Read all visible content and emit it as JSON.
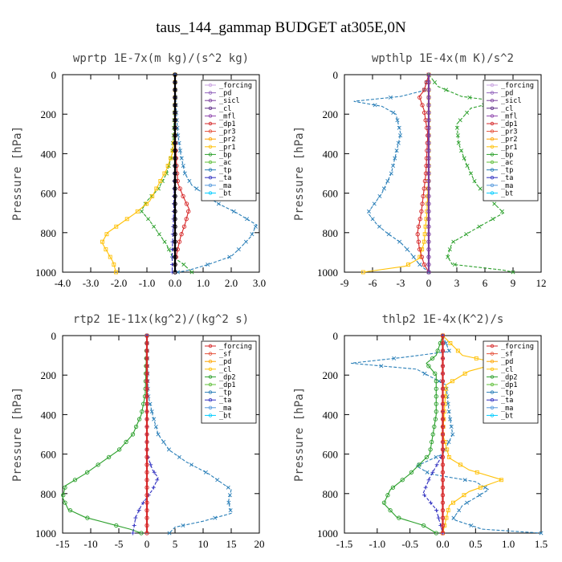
{
  "title": "taus_144_gammap  BUDGET at305E,0N",
  "chart_data": [
    {
      "type": "line",
      "title": "wprtp  1E-7x(m kg)/(s^2 kg)",
      "ylabel": "Pressure [hPa]",
      "xlim": [
        -4.0,
        3.0
      ],
      "ylim": [
        1000,
        0
      ],
      "xticks": [
        -4.0,
        -3.0,
        -2.0,
        -1.0,
        0.0,
        1.0,
        2.0,
        3.0
      ],
      "xtick_labels": [
        "-4.0",
        "-3.0",
        "-2.0",
        "-1.0",
        "0.0",
        "1.0",
        "2.0",
        "3.0"
      ],
      "yticks": [
        0,
        200,
        400,
        600,
        800,
        1000
      ],
      "legend": [
        "_forcing",
        "_pd",
        "_sicl",
        "_cl",
        "_mfl",
        "_dp1",
        "_pr3",
        "_pr2",
        "_pr1",
        "_bp",
        "_ac",
        "_tp",
        "_ta",
        "_ma",
        "_bt"
      ],
      "legend_placement": "top-right",
      "series": [
        {
          "color": "#2a7fb8",
          "marker": "x",
          "points": [
            [
              0,
              0
            ],
            [
              0.02,
              100
            ],
            [
              0.05,
              200
            ],
            [
              0.1,
              300
            ],
            [
              0.2,
              400
            ],
            [
              0.35,
              500
            ],
            [
              0.6,
              560
            ],
            [
              1.0,
              600
            ],
            [
              1.5,
              650
            ],
            [
              2.2,
              700
            ],
            [
              2.9,
              760
            ],
            [
              2.7,
              820
            ],
            [
              2.3,
              880
            ],
            [
              2.0,
              920
            ],
            [
              1.2,
              960
            ],
            [
              0.5,
              990
            ],
            [
              0.1,
              1000
            ]
          ]
        },
        {
          "color": "#2ca02c",
          "marker": "x",
          "points": [
            [
              0,
              0
            ],
            [
              0,
              100
            ],
            [
              -0.05,
              300
            ],
            [
              -0.1,
              400
            ],
            [
              -0.3,
              500
            ],
            [
              -0.6,
              580
            ],
            [
              -1.0,
              640
            ],
            [
              -1.2,
              690
            ],
            [
              -0.9,
              740
            ],
            [
              -0.6,
              800
            ],
            [
              -0.3,
              860
            ],
            [
              -0.1,
              920
            ],
            [
              0.3,
              960
            ],
            [
              0.6,
              1000
            ]
          ]
        },
        {
          "color": "#ffc107",
          "marker": "s",
          "points": [
            [
              0,
              0
            ],
            [
              0,
              300
            ],
            [
              -0.1,
              400
            ],
            [
              -0.3,
              480
            ],
            [
              -0.6,
              560
            ],
            [
              -0.9,
              640
            ],
            [
              -1.4,
              700
            ],
            [
              -2.0,
              760
            ],
            [
              -2.4,
              800
            ],
            [
              -2.6,
              850
            ],
            [
              -2.4,
              900
            ],
            [
              -2.2,
              950
            ],
            [
              -2.1,
              1000
            ]
          ]
        },
        {
          "color": "#d62728",
          "marker": "o",
          "points": [
            [
              0,
              0
            ],
            [
              0,
              300
            ],
            [
              0.05,
              450
            ],
            [
              0.1,
              550
            ],
            [
              0.3,
              620
            ],
            [
              0.5,
              680
            ],
            [
              0.35,
              760
            ],
            [
              0.2,
              820
            ],
            [
              0.1,
              880
            ],
            [
              0,
              950
            ],
            [
              0,
              1000
            ]
          ]
        },
        {
          "color": "#3030c0",
          "marker": "+",
          "points": [
            [
              0,
              0
            ],
            [
              0,
              400
            ],
            [
              -0.05,
              700
            ],
            [
              -0.1,
              900
            ],
            [
              -0.1,
              1000
            ]
          ]
        },
        {
          "color": "#7b3f9e",
          "marker": "o",
          "points": [
            [
              0,
              0
            ],
            [
              0,
              1000
            ]
          ]
        },
        {
          "color": "#000000",
          "marker": "o",
          "points": [
            [
              0,
              0
            ],
            [
              0,
              1000
            ]
          ]
        }
      ]
    },
    {
      "type": "line",
      "title": "wpthlp  1E-4x(m K)/s^2",
      "ylabel": "Pressure [hPa]",
      "xlim": [
        -9,
        12
      ],
      "ylim": [
        1000,
        0
      ],
      "xticks": [
        -9,
        -6,
        -3,
        0,
        3,
        6,
        9,
        12
      ],
      "xtick_labels": [
        "-9",
        "-6",
        "-3",
        "0",
        "3",
        "6",
        "9",
        "12"
      ],
      "yticks": [
        0,
        200,
        400,
        600,
        800,
        1000
      ],
      "legend": [
        "_forcing",
        "_pd",
        "_sicl",
        "_cl",
        "_mfl",
        "_dp1",
        "_pr3",
        "_pr2",
        "_pr1",
        "_bp",
        "_ac",
        "_tp",
        "_ta",
        "_ma",
        "_bt"
      ],
      "legend_placement": "top-right",
      "series": [
        {
          "color": "#2a7fb8",
          "marker": "x",
          "points": [
            [
              0,
              0
            ],
            [
              -0.5,
              80
            ],
            [
              -3.0,
              110
            ],
            [
              -8.0,
              135
            ],
            [
              -5.0,
              160
            ],
            [
              -3.5,
              200
            ],
            [
              -3.0,
              300
            ],
            [
              -3.5,
              400
            ],
            [
              -4.0,
              500
            ],
            [
              -5.0,
              600
            ],
            [
              -6.5,
              700
            ],
            [
              -5.5,
              760
            ],
            [
              -4.5,
              800
            ],
            [
              -3.0,
              850
            ],
            [
              -2.0,
              900
            ],
            [
              -1.0,
              960
            ],
            [
              0,
              1000
            ]
          ]
        },
        {
          "color": "#2ca02c",
          "marker": "x",
          "points": [
            [
              0,
              0
            ],
            [
              1.0,
              60
            ],
            [
              3.5,
              110
            ],
            [
              7.5,
              135
            ],
            [
              4.5,
              170
            ],
            [
              3.0,
              250
            ],
            [
              3.2,
              350
            ],
            [
              4.0,
              450
            ],
            [
              5.0,
              550
            ],
            [
              6.5,
              630
            ],
            [
              8.0,
              700
            ],
            [
              5.0,
              780
            ],
            [
              2.5,
              850
            ],
            [
              2.0,
              920
            ],
            [
              2.5,
              960
            ],
            [
              8.0,
              990
            ],
            [
              9.0,
              1000
            ]
          ]
        },
        {
          "color": "#ffc107",
          "marker": "s",
          "points": [
            [
              0,
              0
            ],
            [
              0,
              500
            ],
            [
              -0.2,
              700
            ],
            [
              -0.5,
              850
            ],
            [
              -1.0,
              930
            ],
            [
              -2.5,
              970
            ],
            [
              -7.0,
              1000
            ]
          ]
        },
        {
          "color": "#d62728",
          "marker": "o",
          "points": [
            [
              0,
              0
            ],
            [
              -0.5,
              80
            ],
            [
              -1.0,
              110
            ],
            [
              -0.5,
              180
            ],
            [
              -0.1,
              300
            ],
            [
              -0.3,
              500
            ],
            [
              -0.8,
              700
            ],
            [
              -1.2,
              800
            ],
            [
              -1.0,
              880
            ],
            [
              -0.5,
              960
            ],
            [
              0,
              1000
            ]
          ]
        },
        {
          "color": "#7b3f9e",
          "marker": "o",
          "points": [
            [
              0,
              0
            ],
            [
              0,
              1000
            ]
          ]
        }
      ]
    },
    {
      "type": "line",
      "title": "rtp2  1E-11x(kg^2)/(kg^2 s)",
      "ylabel": "Pressure [hPa]",
      "xlim": [
        -15,
        20
      ],
      "ylim": [
        1000,
        0
      ],
      "xticks": [
        -15,
        -10,
        -5,
        0,
        5,
        10,
        15,
        20
      ],
      "xtick_labels": [
        "-15",
        "-10",
        "-5",
        "0",
        "5",
        "10",
        "15",
        "20"
      ],
      "yticks": [
        0,
        200,
        400,
        600,
        800,
        1000
      ],
      "legend": [
        "_forcing",
        "_sf",
        "_pd",
        "_cl",
        "_dp2",
        "_dp1",
        "_tp",
        "_ta",
        "_ma",
        "_bt"
      ],
      "legend_placement": "top-right",
      "series": [
        {
          "color": "#2a7fb8",
          "marker": "x",
          "points": [
            [
              0,
              0
            ],
            [
              0.2,
              300
            ],
            [
              1.0,
              400
            ],
            [
              2.0,
              500
            ],
            [
              4.0,
              580
            ],
            [
              7.0,
              640
            ],
            [
              11.0,
              700
            ],
            [
              15.0,
              780
            ],
            [
              14.5,
              840
            ],
            [
              15.0,
              900
            ],
            [
              10.0,
              940
            ],
            [
              5.0,
              970
            ],
            [
              4.0,
              1000
            ]
          ]
        },
        {
          "color": "#2ca02c",
          "marker": "o",
          "points": [
            [
              0,
              0
            ],
            [
              -0.3,
              300
            ],
            [
              -1.0,
              400
            ],
            [
              -2.5,
              500
            ],
            [
              -5.0,
              580
            ],
            [
              -8.0,
              640
            ],
            [
              -11.0,
              700
            ],
            [
              -14.5,
              760
            ],
            [
              -15.0,
              820
            ],
            [
              -14.0,
              880
            ],
            [
              -11.0,
              920
            ],
            [
              -7.0,
              950
            ],
            [
              -3.0,
              980
            ],
            [
              -1.0,
              1000
            ]
          ]
        },
        {
          "color": "#3030c0",
          "marker": "+",
          "points": [
            [
              0,
              0
            ],
            [
              0,
              600
            ],
            [
              1.0,
              680
            ],
            [
              2.0,
              720
            ],
            [
              1.0,
              780
            ],
            [
              -1.0,
              860
            ],
            [
              -2.0,
              920
            ],
            [
              -2.5,
              1000
            ]
          ]
        },
        {
          "color": "#d62728",
          "marker": "o",
          "points": [
            [
              0,
              0
            ],
            [
              0,
              1000
            ]
          ]
        }
      ]
    },
    {
      "type": "line",
      "title": "thlp2  1E-4x(K^2)/s",
      "ylabel": "Pressure [hPa]",
      "xlim": [
        -1.5,
        1.5
      ],
      "ylim": [
        1000,
        0
      ],
      "xticks": [
        -1.5,
        -1.0,
        -0.5,
        0.0,
        0.5,
        1.0,
        1.5
      ],
      "xtick_labels": [
        "-1.5",
        "-1.0",
        "-0.5",
        "0.0",
        "0.5",
        "1.0",
        "1.5"
      ],
      "yticks": [
        0,
        200,
        400,
        600,
        800,
        1000
      ],
      "legend": [
        "_forcing",
        "_sf",
        "_pd",
        "_cl",
        "_dp2",
        "_dp1",
        "_tp",
        "_ta",
        "_ma",
        "_bt"
      ],
      "legend_placement": "top-right",
      "series": [
        {
          "color": "#2a7fb8",
          "marker": "x",
          "points": [
            [
              0,
              0
            ],
            [
              0.1,
              80
            ],
            [
              -0.6,
              110
            ],
            [
              -1.4,
              140
            ],
            [
              -0.4,
              170
            ],
            [
              0.05,
              250
            ],
            [
              0.1,
              400
            ],
            [
              0.15,
              500
            ],
            [
              0.0,
              600
            ],
            [
              -0.4,
              660
            ],
            [
              -0.2,
              700
            ],
            [
              0.5,
              740
            ],
            [
              0.7,
              780
            ],
            [
              0.3,
              860
            ],
            [
              0.15,
              930
            ],
            [
              0.6,
              980
            ],
            [
              1.5,
              1000
            ]
          ]
        },
        {
          "color": "#2ca02c",
          "marker": "o",
          "points": [
            [
              0,
              0
            ],
            [
              -0.1,
              100
            ],
            [
              -0.25,
              140
            ],
            [
              -0.1,
              200
            ],
            [
              -0.1,
              400
            ],
            [
              -0.2,
              600
            ],
            [
              -0.5,
              700
            ],
            [
              -0.8,
              780
            ],
            [
              -0.9,
              850
            ],
            [
              -0.7,
              920
            ],
            [
              -0.3,
              960
            ],
            [
              -0.1,
              1000
            ]
          ]
        },
        {
          "color": "#ffc107",
          "marker": "s",
          "points": [
            [
              0,
              0
            ],
            [
              0.3,
              100
            ],
            [
              0.85,
              140
            ],
            [
              0.4,
              180
            ],
            [
              0.05,
              250
            ],
            [
              0,
              500
            ],
            [
              0.1,
              620
            ],
            [
              0.4,
              680
            ],
            [
              0.9,
              730
            ],
            [
              0.4,
              790
            ],
            [
              0.1,
              860
            ],
            [
              0,
              1000
            ]
          ]
        },
        {
          "color": "#3030c0",
          "marker": "+",
          "points": [
            [
              0,
              0
            ],
            [
              0,
              600
            ],
            [
              -0.2,
              720
            ],
            [
              -0.3,
              800
            ],
            [
              -0.1,
              880
            ],
            [
              0,
              1000
            ]
          ]
        },
        {
          "color": "#d62728",
          "marker": "o",
          "points": [
            [
              0,
              0
            ],
            [
              0,
              1000
            ]
          ]
        }
      ]
    }
  ]
}
